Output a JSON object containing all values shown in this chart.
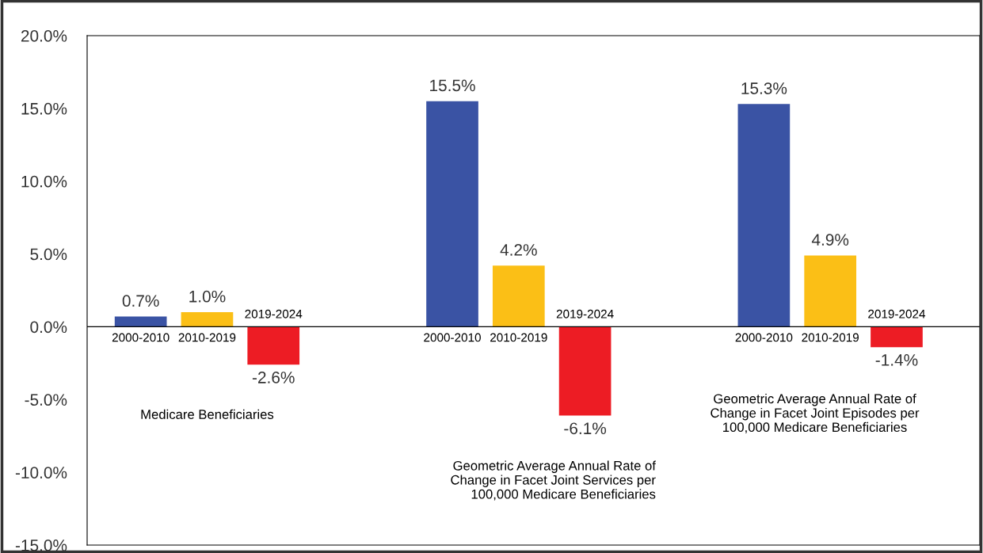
{
  "chart_data": {
    "type": "bar",
    "categories": [
      null,
      null,
      null
    ],
    "series": [
      {
        "name": "2000-2010",
        "color": "#3a53a4",
        "values": [
          0.7,
          15.5,
          15.3
        ],
        "value_labels": [
          "0.7%",
          "15.5%",
          "15.3%"
        ]
      },
      {
        "name": "2010-2019",
        "color": "#fbbf16",
        "values": [
          1.0,
          4.2,
          4.9
        ],
        "value_labels": [
          "1.0%",
          "4.2%",
          "4.9%"
        ]
      },
      {
        "name": "2019-2024",
        "color": "#ed1c24",
        "values": [
          -2.6,
          -6.1,
          -1.4
        ],
        "value_labels": [
          "-2.6%",
          "-6.1%",
          "-1.4%"
        ]
      }
    ],
    "ylim": [
      -15,
      20
    ],
    "yticks": [
      {
        "value": -15,
        "label": "-15.0%"
      },
      {
        "value": -10,
        "label": "-10.0%"
      },
      {
        "value": -5,
        "label": "-5.0%"
      },
      {
        "value": 0,
        "label": "0.0%"
      },
      {
        "value": 5,
        "label": "5.0%"
      },
      {
        "value": 10,
        "label": "10.0%"
      },
      {
        "value": 15,
        "label": "15.0%"
      },
      {
        "value": 20,
        "label": "20.0%"
      }
    ],
    "ref_lines": [
      {
        "axis": "y",
        "value": 0,
        "color": "#000000"
      }
    ],
    "annotations": [
      "Medicare Beneficiaries",
      "Geometric Average Annual Rate of\nChange in Facet Joint Services per\n100,000 Medicare Beneficiaries",
      "Geometric Average Annual Rate of\nChange in Facet Joint Episodes per\n100,000 Medicare Beneficiaries"
    ],
    "grid": false,
    "legend": false
  }
}
